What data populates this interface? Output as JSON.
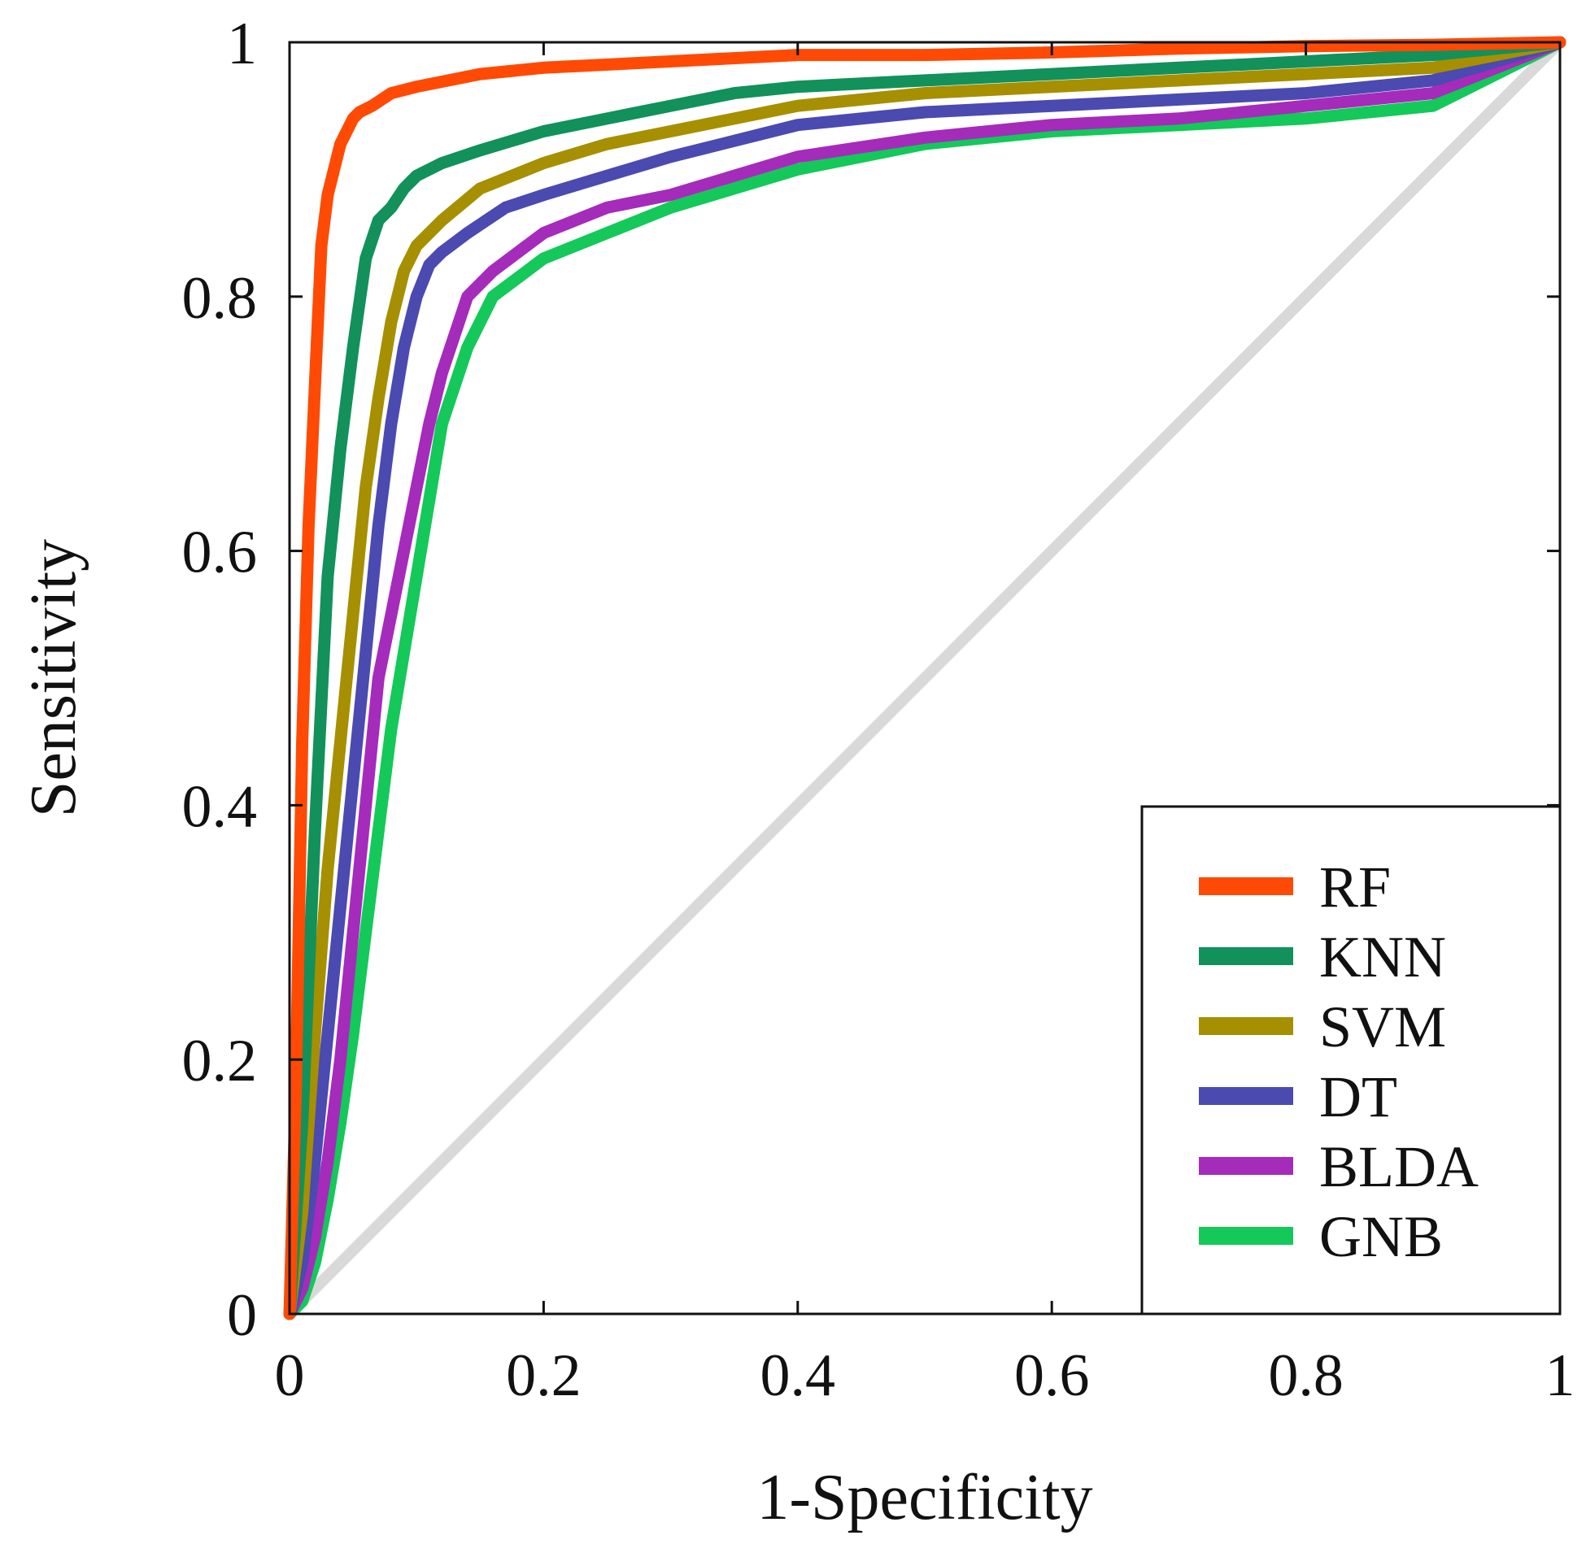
{
  "chart_data": {
    "type": "line",
    "xlabel": "1-Specificity",
    "ylabel": "Sensitivity",
    "xlim": [
      0,
      1
    ],
    "ylim": [
      0,
      1
    ],
    "xticks": [
      0,
      0.2,
      0.4,
      0.6,
      0.8,
      1
    ],
    "yticks": [
      0,
      0.2,
      0.4,
      0.6,
      0.8,
      1
    ],
    "xtick_labels": [
      "0",
      "0.2",
      "0.4",
      "0.6",
      "0.8",
      "1"
    ],
    "ytick_labels": [
      "0",
      "0.2",
      "0.4",
      "0.6",
      "0.8",
      "1"
    ],
    "grid": false,
    "legend_position": "bottom-right",
    "reference_line": {
      "x": [
        0,
        1
      ],
      "y": [
        0,
        1
      ],
      "color": "#d9d9d9"
    },
    "series": [
      {
        "name": "RF",
        "color": "#ff4a05",
        "x": [
          0,
          0.005,
          0.01,
          0.015,
          0.02,
          0.025,
          0.03,
          0.035,
          0.04,
          0.045,
          0.05,
          0.055,
          0.065,
          0.08,
          0.1,
          0.15,
          0.2,
          0.3,
          0.4,
          0.5,
          0.6,
          0.7,
          0.8,
          0.9,
          1
        ],
        "y": [
          0,
          0.18,
          0.45,
          0.62,
          0.73,
          0.84,
          0.88,
          0.9,
          0.92,
          0.93,
          0.94,
          0.945,
          0.95,
          0.96,
          0.965,
          0.975,
          0.98,
          0.985,
          0.99,
          0.99,
          0.992,
          0.995,
          0.997,
          0.998,
          1
        ]
      },
      {
        "name": "KNN",
        "color": "#12915a",
        "x": [
          0,
          0.01,
          0.02,
          0.03,
          0.04,
          0.05,
          0.06,
          0.07,
          0.08,
          0.09,
          0.1,
          0.12,
          0.15,
          0.2,
          0.25,
          0.3,
          0.35,
          0.4,
          0.5,
          0.6,
          0.7,
          0.8,
          0.9,
          1
        ],
        "y": [
          0,
          0.15,
          0.38,
          0.58,
          0.68,
          0.76,
          0.83,
          0.86,
          0.87,
          0.885,
          0.895,
          0.905,
          0.915,
          0.93,
          0.94,
          0.95,
          0.96,
          0.965,
          0.97,
          0.975,
          0.98,
          0.985,
          0.99,
          1
        ]
      },
      {
        "name": "SVM",
        "color": "#a68f00",
        "x": [
          0,
          0.01,
          0.02,
          0.03,
          0.04,
          0.05,
          0.06,
          0.07,
          0.08,
          0.09,
          0.1,
          0.12,
          0.15,
          0.2,
          0.25,
          0.3,
          0.4,
          0.5,
          0.6,
          0.7,
          0.8,
          0.9,
          1
        ],
        "y": [
          0,
          0.08,
          0.22,
          0.35,
          0.45,
          0.55,
          0.65,
          0.72,
          0.78,
          0.82,
          0.84,
          0.86,
          0.885,
          0.905,
          0.92,
          0.93,
          0.95,
          0.96,
          0.965,
          0.97,
          0.975,
          0.98,
          1
        ]
      },
      {
        "name": "DT",
        "color": "#4a4ab0",
        "x": [
          0,
          0.01,
          0.02,
          0.03,
          0.04,
          0.05,
          0.06,
          0.07,
          0.08,
          0.09,
          0.1,
          0.11,
          0.12,
          0.14,
          0.17,
          0.2,
          0.25,
          0.3,
          0.4,
          0.5,
          0.6,
          0.7,
          0.8,
          0.9,
          1
        ],
        "y": [
          0,
          0.04,
          0.12,
          0.22,
          0.32,
          0.42,
          0.52,
          0.62,
          0.7,
          0.76,
          0.8,
          0.825,
          0.835,
          0.85,
          0.87,
          0.88,
          0.895,
          0.91,
          0.935,
          0.945,
          0.95,
          0.955,
          0.96,
          0.97,
          1
        ]
      },
      {
        "name": "BLDA",
        "color": "#a52bbb",
        "x": [
          0,
          0.01,
          0.02,
          0.03,
          0.04,
          0.05,
          0.06,
          0.07,
          0.08,
          0.09,
          0.1,
          0.11,
          0.12,
          0.14,
          0.16,
          0.2,
          0.25,
          0.3,
          0.4,
          0.5,
          0.6,
          0.7,
          0.8,
          0.9,
          1
        ],
        "y": [
          0,
          0.02,
          0.06,
          0.12,
          0.2,
          0.3,
          0.4,
          0.5,
          0.55,
          0.6,
          0.65,
          0.7,
          0.74,
          0.8,
          0.82,
          0.85,
          0.87,
          0.88,
          0.91,
          0.925,
          0.935,
          0.94,
          0.95,
          0.96,
          1
        ]
      },
      {
        "name": "GNB",
        "color": "#14c85a",
        "x": [
          0,
          0.01,
          0.02,
          0.03,
          0.04,
          0.05,
          0.06,
          0.07,
          0.08,
          0.09,
          0.1,
          0.11,
          0.12,
          0.14,
          0.16,
          0.2,
          0.25,
          0.3,
          0.4,
          0.5,
          0.6,
          0.7,
          0.8,
          0.9,
          1
        ],
        "y": [
          0,
          0.01,
          0.04,
          0.09,
          0.15,
          0.22,
          0.3,
          0.38,
          0.46,
          0.52,
          0.58,
          0.64,
          0.7,
          0.76,
          0.8,
          0.83,
          0.85,
          0.87,
          0.9,
          0.92,
          0.93,
          0.935,
          0.94,
          0.95,
          1
        ]
      }
    ]
  }
}
